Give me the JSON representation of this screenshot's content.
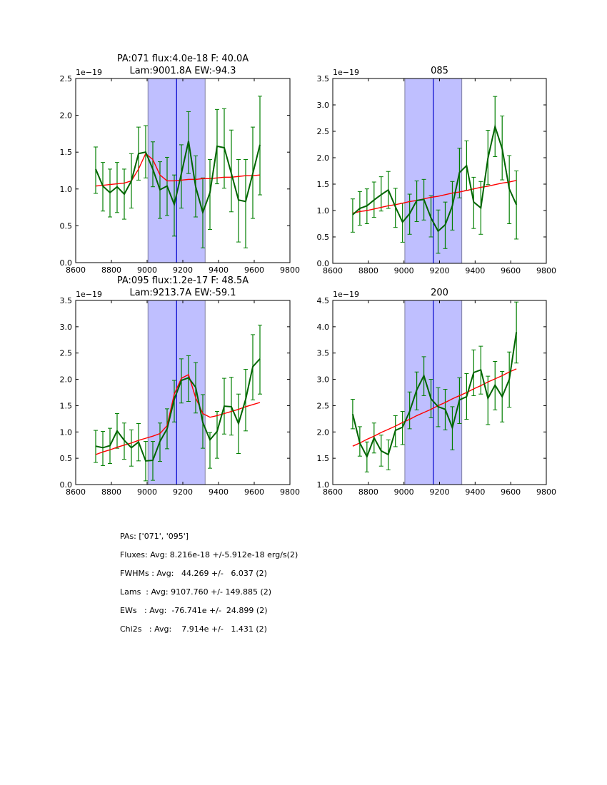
{
  "chart_data": [
    {
      "type": "line",
      "title": "PA:071 flux:4.0e-18 F: 40.0A\nLam:9001.8A EW:-94.3",
      "title_lines": [
        "PA:071 flux:4.0e-18 F: 40.0A",
        "Lam:9001.8A EW:-94.3"
      ],
      "offset_label": "1e−19",
      "xlim": [
        8600,
        9800
      ],
      "ylim": [
        0.0,
        2.5
      ],
      "xticks": [
        8600,
        8800,
        9000,
        9200,
        9400,
        9600,
        9800
      ],
      "xtick_labels": [
        "8600",
        "8800",
        "9000",
        "9200",
        "9400",
        "9600",
        "9800"
      ],
      "yticks": [
        0.0,
        0.5,
        1.0,
        1.5,
        2.0,
        2.5
      ],
      "ytick_labels": [
        "0.0",
        "0.5",
        "1.0",
        "1.5",
        "2.0",
        "2.5"
      ],
      "shaded_region": [
        9005,
        9325
      ],
      "vline": 9165,
      "x": [
        8712,
        8752,
        8792,
        8832,
        8872,
        8912,
        8952,
        8992,
        9032,
        9072,
        9112,
        9152,
        9192,
        9232,
        9272,
        9312,
        9352,
        9392,
        9432,
        9472,
        9512,
        9552,
        9592,
        9632
      ],
      "series": [
        {
          "name": "data",
          "color": "#006400",
          "values": [
            1.27,
            1.04,
            0.95,
            1.03,
            0.93,
            1.11,
            1.48,
            1.5,
            1.27,
            0.99,
            1.04,
            0.79,
            1.21,
            1.65,
            1.03,
            0.68,
            0.95,
            1.58,
            1.56,
            1.21,
            0.85,
            0.83,
            1.21,
            1.6
          ],
          "err_upper": [
            1.57,
            1.36,
            1.27,
            1.36,
            1.27,
            1.48,
            1.84,
            1.86,
            1.64,
            1.37,
            1.43,
            1.19,
            1.6,
            2.05,
            1.45,
            1.15,
            1.4,
            2.08,
            2.09,
            1.8,
            1.4,
            1.4,
            1.84,
            2.26
          ],
          "err_lower": [
            0.94,
            0.7,
            0.62,
            0.68,
            0.59,
            0.74,
            1.12,
            1.15,
            1.03,
            0.6,
            0.64,
            0.36,
            0.74,
            1.21,
            0.62,
            0.2,
            0.45,
            1.07,
            1.01,
            0.69,
            0.28,
            0.2,
            0.6,
            0.92
          ]
        },
        {
          "name": "fit",
          "color": "#ff0000",
          "values": [
            1.04,
            1.05,
            1.06,
            1.07,
            1.08,
            1.11,
            1.27,
            1.48,
            1.4,
            1.19,
            1.11,
            1.11,
            1.12,
            1.13,
            1.13,
            1.14,
            1.14,
            1.15,
            1.16,
            1.16,
            1.17,
            1.18,
            1.18,
            1.19
          ]
        }
      ]
    },
    {
      "type": "line",
      "title": "085",
      "title_lines": [
        "085"
      ],
      "offset_label": "1e−19",
      "xlim": [
        8600,
        9800
      ],
      "ylim": [
        0.0,
        3.5
      ],
      "xticks": [
        8600,
        8800,
        9000,
        9200,
        9400,
        9600,
        9800
      ],
      "xtick_labels": [
        "8600",
        "8800",
        "9000",
        "9200",
        "9400",
        "9600",
        "9800"
      ],
      "yticks": [
        0.0,
        0.5,
        1.0,
        1.5,
        2.0,
        2.5,
        3.0,
        3.5
      ],
      "ytick_labels": [
        "0.0",
        "0.5",
        "1.0",
        "1.5",
        "2.0",
        "2.5",
        "3.0",
        "3.5"
      ],
      "shaded_region": [
        9005,
        9325
      ],
      "vline": 9165,
      "x": [
        8712,
        8752,
        8792,
        8832,
        8872,
        8912,
        8952,
        8992,
        9032,
        9072,
        9112,
        9152,
        9192,
        9232,
        9272,
        9312,
        9352,
        9392,
        9432,
        9472,
        9512,
        9552,
        9592,
        9632
      ],
      "series": [
        {
          "name": "data",
          "color": "#006400",
          "values": [
            0.92,
            1.04,
            1.09,
            1.2,
            1.3,
            1.39,
            1.07,
            0.78,
            0.94,
            1.19,
            1.21,
            0.86,
            0.61,
            0.73,
            1.09,
            1.72,
            1.85,
            1.16,
            1.05,
            1.99,
            2.59,
            2.17,
            1.41,
            1.11
          ],
          "err_upper": [
            1.22,
            1.36,
            1.41,
            1.54,
            1.64,
            1.74,
            1.42,
            1.14,
            1.31,
            1.56,
            1.59,
            1.28,
            1.01,
            1.16,
            1.55,
            2.18,
            2.32,
            1.63,
            1.55,
            2.52,
            3.16,
            2.79,
            2.04,
            1.75
          ],
          "err_lower": [
            0.59,
            0.72,
            0.75,
            0.87,
            0.99,
            1.04,
            0.68,
            0.4,
            0.55,
            0.79,
            0.82,
            0.5,
            0.19,
            0.28,
            0.63,
            1.24,
            1.38,
            0.66,
            0.55,
            1.49,
            2.02,
            1.58,
            0.75,
            0.46
          ]
        },
        {
          "name": "fit",
          "color": "#ff0000",
          "values": [
            0.95,
            0.98,
            1.0,
            1.03,
            1.06,
            1.09,
            1.11,
            1.14,
            1.17,
            1.19,
            1.22,
            1.25,
            1.27,
            1.3,
            1.33,
            1.35,
            1.38,
            1.41,
            1.44,
            1.46,
            1.49,
            1.52,
            1.54,
            1.57
          ]
        }
      ]
    },
    {
      "type": "line",
      "title": "PA:095 flux:1.2e-17 F: 48.5A\nLam:9213.7A EW:-59.1",
      "title_lines": [
        "PA:095 flux:1.2e-17 F: 48.5A",
        "Lam:9213.7A EW:-59.1"
      ],
      "offset_label": "1e−19",
      "xlim": [
        8600,
        9800
      ],
      "ylim": [
        0.0,
        3.5
      ],
      "xticks": [
        8600,
        8800,
        9000,
        9200,
        9400,
        9600,
        9800
      ],
      "xtick_labels": [
        "8600",
        "8800",
        "9000",
        "9200",
        "9400",
        "9600",
        "9800"
      ],
      "yticks": [
        0.0,
        0.5,
        1.0,
        1.5,
        2.0,
        2.5,
        3.0,
        3.5
      ],
      "ytick_labels": [
        "0.0",
        "0.5",
        "1.0",
        "1.5",
        "2.0",
        "2.5",
        "3.0",
        "3.5"
      ],
      "shaded_region": [
        9005,
        9325
      ],
      "vline": 9165,
      "x": [
        8712,
        8752,
        8792,
        8832,
        8872,
        8912,
        8952,
        8992,
        9032,
        9072,
        9112,
        9152,
        9192,
        9232,
        9272,
        9312,
        9352,
        9392,
        9432,
        9472,
        9512,
        9552,
        9592,
        9632
      ],
      "series": [
        {
          "name": "data",
          "color": "#006400",
          "values": [
            0.73,
            0.7,
            0.74,
            1.02,
            0.84,
            0.7,
            0.81,
            0.45,
            0.46,
            0.82,
            1.06,
            1.62,
            1.98,
            2.03,
            1.85,
            1.18,
            0.85,
            1.01,
            1.49,
            1.48,
            1.16,
            1.62,
            2.24,
            2.39
          ],
          "err_upper": [
            1.03,
            1.01,
            1.07,
            1.35,
            1.17,
            1.04,
            1.16,
            0.82,
            0.82,
            1.17,
            1.44,
            1.98,
            2.39,
            2.45,
            2.32,
            1.71,
            0.99,
            1.39,
            2.02,
            2.04,
            1.72,
            2.19,
            2.85,
            3.03
          ],
          "err_lower": [
            0.42,
            0.36,
            0.4,
            0.69,
            0.48,
            0.35,
            0.45,
            0.07,
            0.08,
            0.44,
            0.68,
            1.19,
            1.55,
            1.58,
            1.36,
            0.69,
            0.31,
            0.5,
            0.96,
            0.94,
            0.59,
            1.02,
            1.61,
            1.72
          ]
        },
        {
          "name": "fit",
          "color": "#ff0000",
          "values": [
            0.57,
            0.62,
            0.66,
            0.71,
            0.75,
            0.79,
            0.84,
            0.88,
            0.92,
            0.97,
            1.12,
            1.72,
            2.02,
            2.09,
            1.65,
            1.35,
            1.28,
            1.31,
            1.35,
            1.39,
            1.43,
            1.48,
            1.52,
            1.56
          ]
        }
      ]
    },
    {
      "type": "line",
      "title": "200",
      "title_lines": [
        "200"
      ],
      "offset_label": "1e−19",
      "xlim": [
        8600,
        9800
      ],
      "ylim": [
        1.0,
        4.5
      ],
      "xticks": [
        8600,
        8800,
        9000,
        9200,
        9400,
        9600,
        9800
      ],
      "xtick_labels": [
        "8600",
        "8800",
        "9000",
        "9200",
        "9400",
        "9600",
        "9800"
      ],
      "yticks": [
        1.0,
        1.5,
        2.0,
        2.5,
        3.0,
        3.5,
        4.0,
        4.5
      ],
      "ytick_labels": [
        "1.0",
        "1.5",
        "2.0",
        "2.5",
        "3.0",
        "3.5",
        "4.0",
        "4.5"
      ],
      "shaded_region": [
        9005,
        9325
      ],
      "vline": 9165,
      "x": [
        8712,
        8752,
        8792,
        8832,
        8872,
        8912,
        8952,
        8992,
        9032,
        9072,
        9112,
        9152,
        9192,
        9232,
        9272,
        9312,
        9352,
        9392,
        9432,
        9472,
        9512,
        9552,
        9592,
        9632
      ],
      "series": [
        {
          "name": "data",
          "color": "#006400",
          "values": [
            2.34,
            1.79,
            1.53,
            1.89,
            1.64,
            1.57,
            2.03,
            2.09,
            2.39,
            2.8,
            3.07,
            2.63,
            2.48,
            2.43,
            2.08,
            2.61,
            2.67,
            3.13,
            3.18,
            2.64,
            2.89,
            2.67,
            3.0,
            3.9
          ],
          "err_upper": [
            2.62,
            2.1,
            1.81,
            2.17,
            1.94,
            1.85,
            2.31,
            2.39,
            2.76,
            3.14,
            3.43,
            3.0,
            2.84,
            2.81,
            2.48,
            3.03,
            3.11,
            3.56,
            3.63,
            3.06,
            3.34,
            3.15,
            3.52,
            4.47
          ],
          "err_lower": [
            2.06,
            1.54,
            1.24,
            1.6,
            1.35,
            1.28,
            1.72,
            1.76,
            2.06,
            2.42,
            2.69,
            2.27,
            2.1,
            2.04,
            1.66,
            2.16,
            2.24,
            2.69,
            2.72,
            2.14,
            2.42,
            2.19,
            2.47,
            3.31
          ]
        },
        {
          "name": "fit",
          "color": "#ff0000",
          "values": [
            1.73,
            1.79,
            1.86,
            1.92,
            1.99,
            2.05,
            2.11,
            2.18,
            2.24,
            2.31,
            2.37,
            2.43,
            2.5,
            2.56,
            2.63,
            2.69,
            2.75,
            2.82,
            2.88,
            2.95,
            3.01,
            3.07,
            3.14,
            3.2
          ]
        }
      ]
    }
  ],
  "colors": {
    "data_line": "#006400",
    "errorbar": "#007f00",
    "fit_line": "#ff0000",
    "shaded_region": "#bfbfff",
    "vline": "#0000cc"
  },
  "summary": {
    "pas": "PAs: ['071', '095']",
    "fluxes": "Fluxes: Avg: 8.216e-18 +/-5.912e-18 erg/s(2)",
    "fwhms": "FWHMs : Avg:   44.269 +/-   6.037 (2)",
    "lams": "Lams  : Avg: 9107.760 +/- 149.885 (2)",
    "ews": "EWs   : Avg:  -76.741e +/-  24.899 (2)",
    "chi2s": "Chi2s   : Avg:    7.914e +/-   1.431 (2)"
  }
}
